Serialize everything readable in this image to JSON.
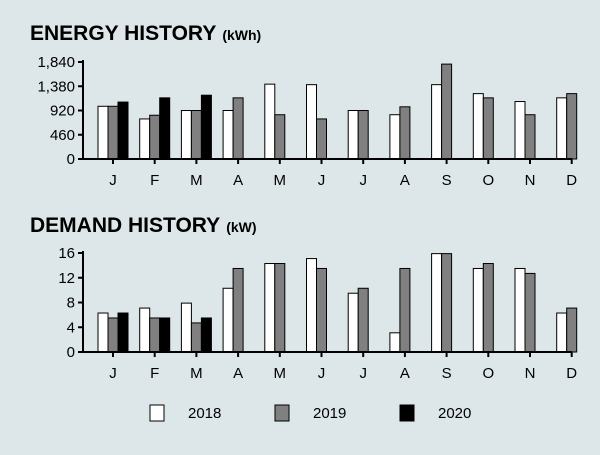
{
  "colors": {
    "background": "#dde6e9",
    "y2018": "#ffffff",
    "y2019": "#808080",
    "y2020": "#000000"
  },
  "chart_data": [
    {
      "type": "bar",
      "title": "ENERGY HISTORY",
      "unit": "(kWh)",
      "categories": [
        "J",
        "F",
        "M",
        "A",
        "M",
        "J",
        "J",
        "A",
        "S",
        "O",
        "N",
        "D"
      ],
      "ylim": [
        0,
        1840
      ],
      "yticks": [
        0,
        460,
        920,
        1380,
        1840
      ],
      "ytick_labels": [
        "0",
        "460",
        "920",
        "1,380",
        "1,840"
      ],
      "series": [
        {
          "name": "2018",
          "color": "#ffffff",
          "values": [
            1000,
            760,
            920,
            920,
            1420,
            1410,
            920,
            840,
            1410,
            1240,
            1090,
            1160
          ]
        },
        {
          "name": "2019",
          "color": "#808080",
          "values": [
            1000,
            830,
            920,
            1160,
            840,
            760,
            920,
            990,
            1800,
            1160,
            840,
            1240
          ]
        },
        {
          "name": "2020",
          "color": "#000000",
          "values": [
            1080,
            1160,
            1210,
            null,
            null,
            null,
            null,
            null,
            null,
            null,
            null,
            null
          ]
        }
      ]
    },
    {
      "type": "bar",
      "title": "DEMAND HISTORY",
      "unit": "(kW)",
      "categories": [
        "J",
        "F",
        "M",
        "A",
        "M",
        "J",
        "J",
        "A",
        "S",
        "O",
        "N",
        "D"
      ],
      "ylim": [
        0,
        16
      ],
      "yticks": [
        0,
        4,
        8,
        12,
        16
      ],
      "ytick_labels": [
        "0",
        "4",
        "8",
        "12",
        "16"
      ],
      "series": [
        {
          "name": "2018",
          "color": "#ffffff",
          "values": [
            6.3,
            7.1,
            7.9,
            10.3,
            14.3,
            15.1,
            9.5,
            3.1,
            15.9,
            13.5,
            13.5,
            6.3
          ]
        },
        {
          "name": "2019",
          "color": "#808080",
          "values": [
            5.5,
            5.5,
            4.7,
            13.5,
            14.3,
            13.5,
            10.3,
            13.5,
            15.9,
            14.3,
            12.7,
            7.1
          ]
        },
        {
          "name": "2020",
          "color": "#000000",
          "values": [
            6.3,
            5.5,
            5.5,
            null,
            null,
            null,
            null,
            null,
            null,
            null,
            null,
            null
          ]
        }
      ]
    }
  ],
  "legend": [
    {
      "label": "2018",
      "color": "#ffffff"
    },
    {
      "label": "2019",
      "color": "#808080"
    },
    {
      "label": "2020",
      "color": "#000000"
    }
  ]
}
